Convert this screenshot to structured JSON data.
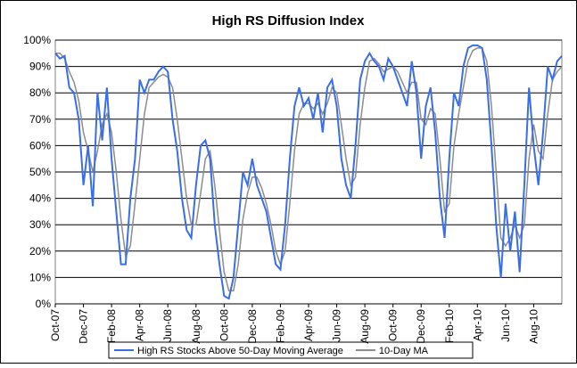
{
  "chart_data": {
    "type": "line",
    "title": "High RS Diffusion Index",
    "categories": [
      "Oct-07",
      null,
      null,
      null,
      null,
      null,
      "Dec-07",
      null,
      null,
      null,
      null,
      null,
      "Feb-08",
      null,
      null,
      null,
      null,
      null,
      "Apr-08",
      null,
      null,
      null,
      null,
      null,
      "Jun-08",
      null,
      null,
      null,
      null,
      null,
      "Aug-08",
      null,
      null,
      null,
      null,
      null,
      "Oct-08",
      null,
      null,
      null,
      null,
      null,
      "Dec-08",
      null,
      null,
      null,
      null,
      null,
      "Feb-09",
      null,
      null,
      null,
      null,
      null,
      "Apr-09",
      null,
      null,
      null,
      null,
      null,
      "Jun-09",
      null,
      null,
      null,
      null,
      null,
      "Aug-09",
      null,
      null,
      null,
      null,
      null,
      "Oct-09",
      null,
      null,
      null,
      null,
      null,
      "Dec-09",
      null,
      null,
      null,
      null,
      null,
      "Feb-10",
      null,
      null,
      null,
      null,
      null,
      "Apr-10",
      null,
      null,
      null,
      null,
      null,
      "Jun-10",
      null,
      null,
      null,
      null,
      null,
      "Aug-10",
      null,
      null,
      null,
      null,
      null,
      null
    ],
    "series": [
      {
        "name": "High RS Stocks Above 50-Day Moving Average",
        "color": "#3a6ee8",
        "values": [
          95,
          93,
          94,
          82,
          80,
          70,
          45,
          60,
          37,
          80,
          62,
          82,
          55,
          35,
          15,
          15,
          40,
          55,
          85,
          80,
          85,
          85,
          88,
          90,
          88,
          70,
          58,
          40,
          28,
          25,
          45,
          60,
          62,
          55,
          30,
          15,
          3,
          2,
          10,
          30,
          50,
          45,
          55,
          45,
          40,
          35,
          25,
          15,
          13,
          30,
          55,
          75,
          82,
          75,
          78,
          70,
          80,
          65,
          82,
          85,
          75,
          55,
          45,
          40,
          60,
          85,
          92,
          95,
          92,
          90,
          85,
          93,
          90,
          85,
          80,
          75,
          92,
          80,
          55,
          75,
          82,
          65,
          40,
          25,
          55,
          80,
          75,
          90,
          97,
          98,
          98,
          97,
          85,
          60,
          30,
          10,
          38,
          20,
          35,
          12,
          45,
          82,
          60,
          45,
          65,
          90,
          85,
          92,
          94
        ]
      },
      {
        "name": "10-Day MA",
        "color": "#8c8c8c",
        "values": [
          95,
          95,
          93,
          88,
          84,
          77,
          65,
          58,
          50,
          58,
          68,
          72,
          65,
          50,
          32,
          18,
          22,
          38,
          55,
          72,
          82,
          84,
          86,
          87,
          86,
          82,
          70,
          55,
          40,
          30,
          30,
          42,
          55,
          58,
          45,
          28,
          12,
          5,
          5,
          15,
          32,
          42,
          48,
          48,
          44,
          38,
          30,
          20,
          15,
          20,
          38,
          58,
          72,
          76,
          76,
          74,
          76,
          72,
          76,
          82,
          80,
          68,
          55,
          45,
          48,
          68,
          82,
          92,
          93,
          91,
          88,
          89,
          90,
          88,
          84,
          80,
          84,
          84,
          70,
          68,
          74,
          72,
          55,
          35,
          38,
          60,
          72,
          82,
          92,
          96,
          97,
          97,
          92,
          75,
          50,
          25,
          22,
          25,
          30,
          25,
          30,
          55,
          68,
          58,
          55,
          72,
          85,
          88,
          90
        ]
      }
    ],
    "ylim": [
      0,
      100
    ],
    "yticks": [
      {
        "value": 0,
        "label": "0%"
      },
      {
        "value": 10,
        "label": "10%"
      },
      {
        "value": 20,
        "label": "20%"
      },
      {
        "value": 30,
        "label": "30%"
      },
      {
        "value": 40,
        "label": "40%"
      },
      {
        "value": 50,
        "label": "50%"
      },
      {
        "value": 60,
        "label": "60%"
      },
      {
        "value": 70,
        "label": "70%"
      },
      {
        "value": 80,
        "label": "80%"
      },
      {
        "value": 90,
        "label": "90%"
      },
      {
        "value": 100,
        "label": "100%"
      }
    ],
    "grid": true
  }
}
